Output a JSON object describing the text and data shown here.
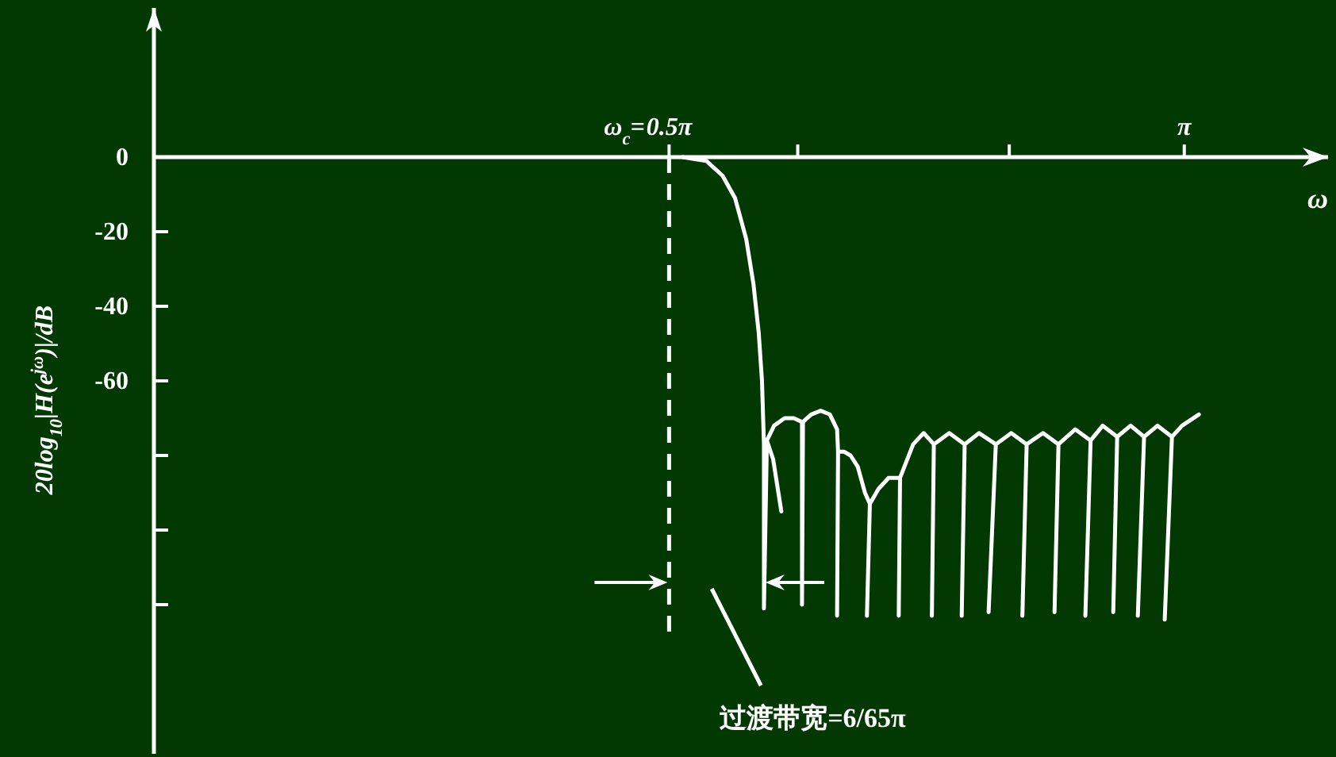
{
  "chart_data": {
    "type": "line",
    "xlabel": "ω",
    "ylabel": "20log$_{10}$|H(e$^{jω}$)|/dB",
    "x": [
      1.612,
      1.684,
      1.734,
      1.772,
      1.806,
      1.828,
      1.844,
      1.854,
      1.86,
      1.86,
      1.869,
      1.888,
      1.913,
      1.888,
      1.869,
      1.891,
      1.923,
      1.951,
      1.976,
      1.976,
      1.979,
      2.004,
      2.033,
      2.061,
      2.083,
      2.086,
      2.083,
      2.086,
      2.105,
      2.124,
      2.146,
      2.168,
      2.183,
      2.174,
      2.183,
      2.209,
      2.24,
      2.275,
      2.271,
      2.275,
      2.315,
      2.347,
      2.378,
      2.372,
      2.378,
      2.425,
      2.472,
      2.463,
      2.472,
      2.516,
      2.567,
      2.545,
      2.567,
      2.614,
      2.661,
      2.648,
      2.661,
      2.711,
      2.758,
      2.746,
      2.758,
      2.809,
      2.856,
      2.84,
      2.856,
      2.893,
      2.937,
      2.925,
      2.937,
      2.978,
      3.019,
      3.0,
      3.019,
      3.06,
      3.104,
      3.082,
      3.104,
      3.135,
      3.186
    ],
    "values": [
      0,
      -1,
      -5,
      -11,
      -22,
      -34,
      -47,
      -60,
      -77,
      -121,
      -76,
      -81,
      -95,
      -81,
      -76,
      -72,
      -70,
      -70,
      -71,
      -120,
      -71,
      -69,
      -68,
      -69,
      -73,
      -79,
      -123,
      -79,
      -79,
      -80,
      -83,
      -90,
      -93,
      -123,
      -93,
      -89,
      -86,
      -86,
      -123,
      -86,
      -77,
      -74,
      -77,
      -123,
      -77,
      -74,
      -77,
      -123,
      -77,
      -74,
      -77,
      -122,
      -77,
      -74,
      -77,
      -123,
      -77,
      -74,
      -77,
      -122,
      -77,
      -73,
      -76,
      -123,
      -76,
      -72,
      -75,
      -122,
      -75,
      -72,
      -75,
      -123,
      -75,
      -72,
      -75,
      -124,
      -75,
      -72,
      -69
    ],
    "color": "#ffffff",
    "line_style": "solid",
    "xlim": [
      0,
      3.58
    ],
    "ylim": [
      -160,
      40
    ],
    "xticks": [
      {
        "value": 1.5708,
        "label": "0.5π"
      },
      {
        "value": 1.963,
        "label": null
      },
      {
        "value": 2.608,
        "label": null
      },
      {
        "value": 3.1416,
        "label": "π"
      }
    ],
    "yticks": [
      {
        "value": 0,
        "label": "0"
      },
      {
        "value": -20,
        "label": "-20"
      },
      {
        "value": -40,
        "label": "-40"
      },
      {
        "value": -60,
        "label": "-60"
      },
      {
        "value": -80,
        "label": null
      },
      {
        "value": -100,
        "label": null
      },
      {
        "value": -120,
        "label": null
      }
    ],
    "ref_lines": [
      {
        "axis": "x",
        "value": 1.5708,
        "label": "ω$_{c}$=",
        "line_style": "dashed",
        "color": "#ffffff"
      }
    ],
    "annotations": [
      "过渡带宽=6/65π"
    ]
  }
}
